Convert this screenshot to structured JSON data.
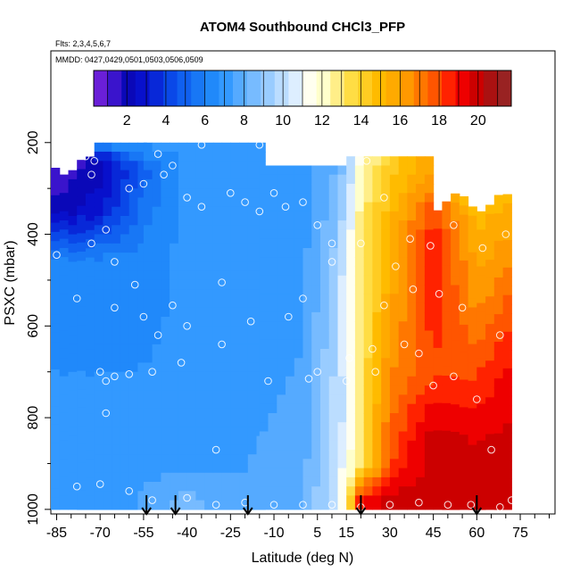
{
  "chart_data": {
    "type": "heatmap",
    "title": "ATOM4 Southbound CHCl3_PFP",
    "annotations": [
      "Flts: 2,3,4,5,6,7",
      "MMDD: 0427,0429,0501,0503,0506,0509"
    ],
    "xlabel": "Latitude (deg N)",
    "ylabel": "PSXC (mbar)",
    "xlim": [
      -87,
      87
    ],
    "ylim": [
      1010,
      0
    ],
    "x_ticks": [
      -85,
      -70,
      -55,
      -40,
      -25,
      -10,
      5,
      15,
      30,
      45,
      60,
      75
    ],
    "y_ticks": [
      200,
      400,
      600,
      800,
      1000
    ],
    "colorbar": {
      "range": [
        0.3,
        21.7
      ],
      "ticks": [
        2,
        4,
        6,
        8,
        10,
        12,
        14,
        16,
        18,
        20
      ],
      "colors": [
        "#6a1fd8",
        "#3a14cc",
        "#0a08b8",
        "#0810cc",
        "#0828d8",
        "#0a48e8",
        "#1060f0",
        "#1877f5",
        "#2089fa",
        "#3399ff",
        "#55aaff",
        "#77bbff",
        "#99ccff",
        "#bbddff",
        "#ddeeff",
        "#fffff0",
        "#ffffcc",
        "#ffee88",
        "#ffdd44",
        "#ffcc22",
        "#ffbb00",
        "#ffaa00",
        "#ff9900",
        "#ff7700",
        "#ff5500",
        "#ff2200",
        "#ee0000",
        "#cc0000",
        "#aa1111",
        "#992222"
      ]
    },
    "profiles": [
      {
        "lat_range": [
          -87,
          -72
        ],
        "p_range": [
          230,
          1000
        ]
      },
      {
        "lat_range": [
          -72,
          -55
        ],
        "p_range": [
          200,
          1000
        ]
      },
      {
        "lat_range": [
          -55,
          -15
        ],
        "p_range": [
          200,
          1000
        ]
      },
      {
        "lat_range": [
          -15,
          15
        ],
        "p_range": [
          250,
          1000
        ]
      },
      {
        "lat_range": [
          15,
          45
        ],
        "p_range": [
          230,
          1000
        ]
      },
      {
        "lat_range": [
          45,
          72
        ],
        "p_range": [
          310,
          1000
        ]
      }
    ],
    "field_anchors": [
      {
        "lat": -85,
        "values": [
          {
            "p": 240,
            "v": 1
          },
          {
            "p": 350,
            "v": 2
          },
          {
            "p": 450,
            "v": 6
          },
          {
            "p": 800,
            "v": 7
          },
          {
            "p": 1000,
            "v": 7
          }
        ]
      },
      {
        "lat": -70,
        "values": [
          {
            "p": 200,
            "v": 7
          },
          {
            "p": 240,
            "v": 2
          },
          {
            "p": 350,
            "v": 3
          },
          {
            "p": 450,
            "v": 6
          },
          {
            "p": 800,
            "v": 7
          },
          {
            "p": 1000,
            "v": 7
          }
        ]
      },
      {
        "lat": -55,
        "values": [
          {
            "p": 200,
            "v": 7
          },
          {
            "p": 260,
            "v": 5
          },
          {
            "p": 400,
            "v": 6
          },
          {
            "p": 800,
            "v": 7
          },
          {
            "p": 980,
            "v": 7.5
          }
        ]
      },
      {
        "lat": -40,
        "values": [
          {
            "p": 200,
            "v": 7
          },
          {
            "p": 500,
            "v": 7
          },
          {
            "p": 900,
            "v": 7
          },
          {
            "p": 980,
            "v": 8.5
          }
        ]
      },
      {
        "lat": -20,
        "values": [
          {
            "p": 200,
            "v": 7
          },
          {
            "p": 600,
            "v": 7
          },
          {
            "p": 980,
            "v": 7.5
          }
        ]
      },
      {
        "lat": 0,
        "values": [
          {
            "p": 250,
            "v": 7
          },
          {
            "p": 700,
            "v": 7.5
          },
          {
            "p": 980,
            "v": 8
          }
        ]
      },
      {
        "lat": 10,
        "values": [
          {
            "p": 250,
            "v": 8
          },
          {
            "p": 500,
            "v": 9
          },
          {
            "p": 980,
            "v": 10
          }
        ]
      },
      {
        "lat": 15,
        "values": [
          {
            "p": 250,
            "v": 9
          },
          {
            "p": 500,
            "v": 11
          },
          {
            "p": 800,
            "v": 10.5
          },
          {
            "p": 980,
            "v": 12
          }
        ]
      },
      {
        "lat": 20,
        "values": [
          {
            "p": 240,
            "v": 12
          },
          {
            "p": 400,
            "v": 13
          },
          {
            "p": 700,
            "v": 13
          },
          {
            "p": 900,
            "v": 13
          },
          {
            "p": 980,
            "v": 19
          }
        ]
      },
      {
        "lat": 30,
        "values": [
          {
            "p": 240,
            "v": 14
          },
          {
            "p": 350,
            "v": 15
          },
          {
            "p": 600,
            "v": 16
          },
          {
            "p": 900,
            "v": 18
          },
          {
            "p": 980,
            "v": 20
          }
        ]
      },
      {
        "lat": 45,
        "values": [
          {
            "p": 260,
            "v": 16
          },
          {
            "p": 350,
            "v": 18
          },
          {
            "p": 450,
            "v": 19
          },
          {
            "p": 700,
            "v": 18
          },
          {
            "p": 850,
            "v": 20
          },
          {
            "p": 980,
            "v": 20
          }
        ]
      },
      {
        "lat": 60,
        "values": [
          {
            "p": 300,
            "v": 12
          },
          {
            "p": 350,
            "v": 15
          },
          {
            "p": 500,
            "v": 16
          },
          {
            "p": 700,
            "v": 18
          },
          {
            "p": 900,
            "v": 20
          },
          {
            "p": 980,
            "v": 20
          }
        ]
      },
      {
        "lat": 70,
        "values": [
          {
            "p": 310,
            "v": 15
          },
          {
            "p": 500,
            "v": 17
          },
          {
            "p": 700,
            "v": 19
          },
          {
            "p": 900,
            "v": 20
          },
          {
            "p": 980,
            "v": 20
          }
        ]
      }
    ],
    "samples": [
      [
        -85,
        445
      ],
      [
        -80,
        250
      ],
      [
        -75,
        230
      ],
      [
        -72,
        240
      ],
      [
        -73,
        270
      ],
      [
        -68,
        390
      ],
      [
        -60,
        300
      ],
      [
        -55,
        290
      ],
      [
        -48,
        270
      ],
      [
        -45,
        250
      ],
      [
        -40,
        320
      ],
      [
        -35,
        340
      ],
      [
        -25,
        310
      ],
      [
        -20,
        330
      ],
      [
        -15,
        350
      ],
      [
        -10,
        310
      ],
      [
        -6,
        340
      ],
      [
        0,
        330
      ],
      [
        5,
        380
      ],
      [
        10,
        420
      ],
      [
        -78,
        540
      ],
      [
        -65,
        560
      ],
      [
        -55,
        580
      ],
      [
        -50,
        620
      ],
      [
        -40,
        600
      ],
      [
        -28,
        640
      ],
      [
        -18,
        590
      ],
      [
        -5,
        580
      ],
      [
        0,
        540
      ],
      [
        -70,
        700
      ],
      [
        -68,
        720
      ],
      [
        -65,
        710
      ],
      [
        -60,
        705
      ],
      [
        -52,
        700
      ],
      [
        -42,
        680
      ],
      [
        -12,
        720
      ],
      [
        2,
        715
      ],
      [
        15,
        720
      ],
      [
        25,
        700
      ],
      [
        -68,
        790
      ],
      [
        -30,
        870
      ],
      [
        -78,
        950
      ],
      [
        -70,
        945
      ],
      [
        -60,
        960
      ],
      [
        -52,
        980
      ],
      [
        -40,
        975
      ],
      [
        -30,
        990
      ],
      [
        -20,
        985
      ],
      [
        -10,
        990
      ],
      [
        0,
        990
      ],
      [
        10,
        990
      ],
      [
        20,
        995
      ],
      [
        30,
        990
      ],
      [
        40,
        985
      ],
      [
        50,
        990
      ],
      [
        58,
        990
      ],
      [
        68,
        995
      ],
      [
        72,
        980
      ],
      [
        -50,
        225
      ],
      [
        -35,
        205
      ],
      [
        -15,
        205
      ],
      [
        0,
        215
      ],
      [
        12,
        235
      ],
      [
        22,
        240
      ],
      [
        28,
        320
      ],
      [
        37,
        410
      ],
      [
        44,
        425
      ],
      [
        52,
        380
      ],
      [
        62,
        430
      ],
      [
        70,
        400
      ],
      [
        32,
        470
      ],
      [
        38,
        520
      ],
      [
        47,
        530
      ],
      [
        55,
        560
      ],
      [
        68,
        620
      ],
      [
        40,
        660
      ],
      [
        52,
        710
      ],
      [
        60,
        760
      ],
      [
        35,
        640
      ],
      [
        24,
        650
      ],
      [
        16,
        670
      ],
      [
        5,
        700
      ],
      [
        65,
        870
      ],
      [
        45,
        730
      ],
      [
        28,
        555
      ],
      [
        20,
        420
      ],
      [
        10,
        460
      ],
      [
        -28,
        505
      ],
      [
        -45,
        555
      ],
      [
        -58,
        510
      ],
      [
        -65,
        460
      ],
      [
        -73,
        420
      ]
    ],
    "flight_markers_lat": [
      -54,
      -44,
      -19,
      20,
      60
    ]
  }
}
